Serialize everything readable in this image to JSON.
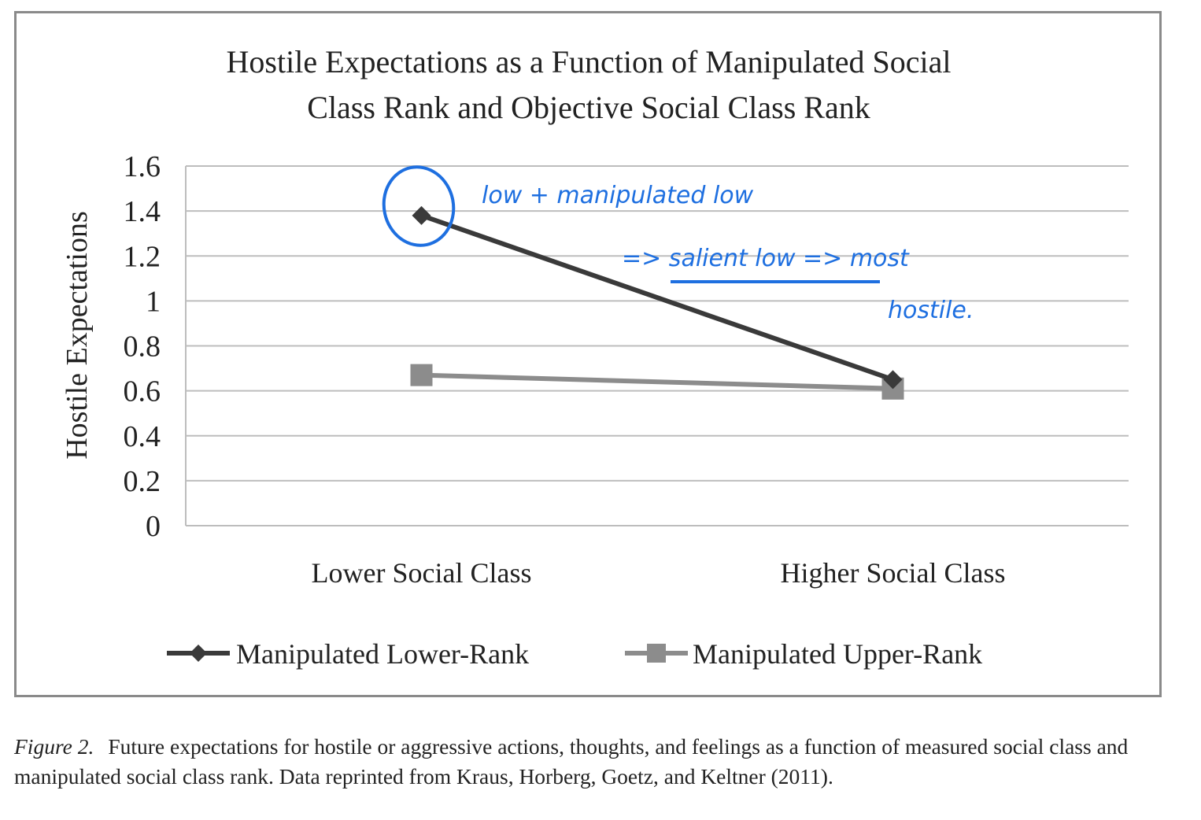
{
  "chart_data": {
    "type": "line",
    "title_lines": [
      "Hostile Expectations as a Function of Manipulated Social",
      "Class Rank and Objective Social Class Rank"
    ],
    "ylabel": "Hostile Expectations",
    "xlabel": "",
    "ylim": [
      0,
      1.6
    ],
    "yticks": [
      "0",
      "0.2",
      "0.4",
      "0.6",
      "0.8",
      "1",
      "1.2",
      "1.4",
      "1.6"
    ],
    "categories": [
      "Lower Social Class",
      "Higher Social Class"
    ],
    "grid": true,
    "legend_position": "bottom",
    "series": [
      {
        "name": "Manipulated Lower-Rank",
        "values": [
          1.38,
          0.65
        ],
        "color": "#3a3a3a",
        "marker": "diamond"
      },
      {
        "name": "Manipulated Upper-Rank",
        "values": [
          0.67,
          0.61
        ],
        "color": "#8c8c8c",
        "marker": "square"
      }
    ]
  },
  "annotation": {
    "color": "#1e6fe0",
    "lines": [
      "low + manipulated low",
      "=> salient low => most",
      "hostile."
    ]
  },
  "caption": {
    "label": "Figure 2.",
    "text": "Future expectations for hostile or aggressive actions, thoughts, and feelings as a function of measured social class and manipulated social class rank. Data reprinted from Kraus, Horberg, Goetz, and Keltner (2011)."
  }
}
